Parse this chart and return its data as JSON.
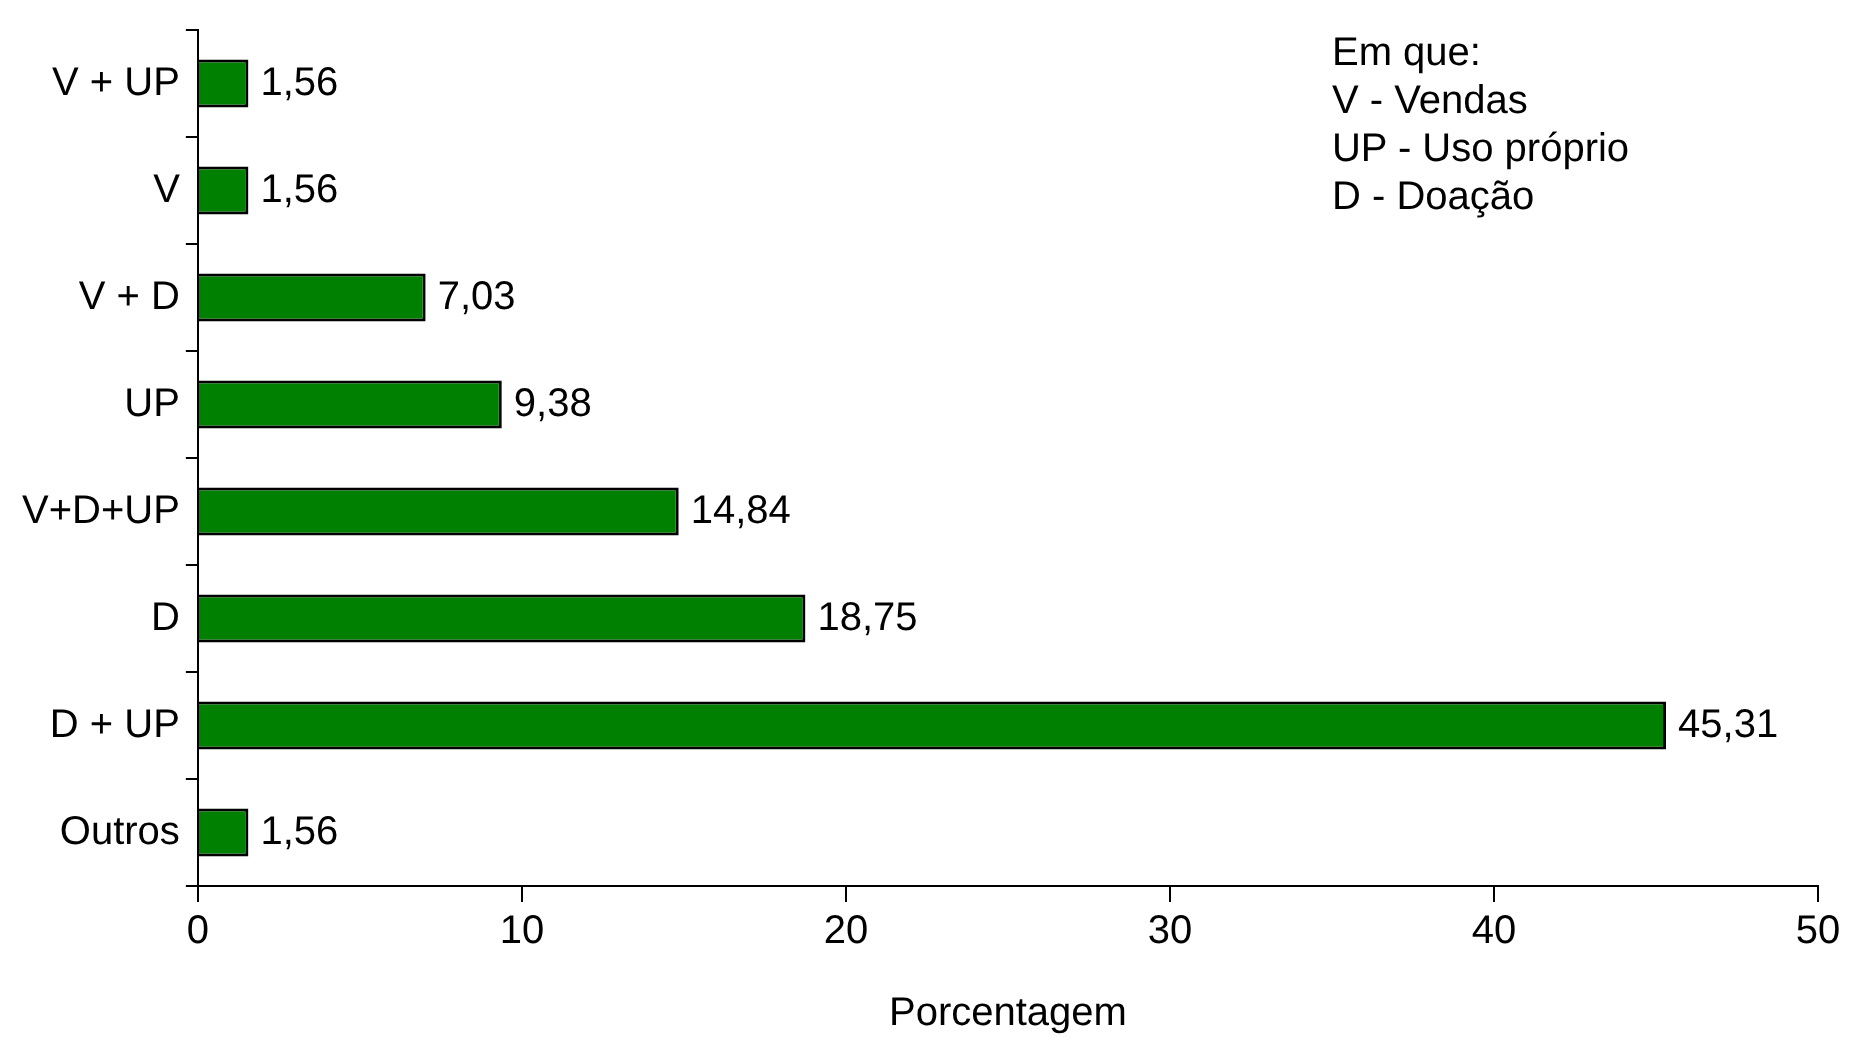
{
  "chart_data": {
    "type": "bar",
    "orientation": "horizontal",
    "xlabel": "Porcentagem",
    "categories": [
      "V + UP",
      "V",
      "V + D",
      "UP",
      "V+D+UP",
      "D",
      "D + UP",
      "Outros"
    ],
    "values": [
      1.56,
      1.56,
      7.03,
      9.38,
      14.84,
      18.75,
      45.31,
      1.56
    ],
    "value_labels": [
      "1,56",
      "1,56",
      "7,03",
      "9,38",
      "14,84",
      "18,75",
      "45,31",
      "1,56"
    ],
    "color": "#008000",
    "xlim": [
      0,
      50
    ],
    "xticks": [
      0,
      10,
      20,
      30,
      40,
      50
    ],
    "grid": false,
    "legend": false,
    "annotations": [
      "Em que:",
      "V - Vendas",
      "UP - Uso próprio",
      "D - Doação"
    ]
  }
}
